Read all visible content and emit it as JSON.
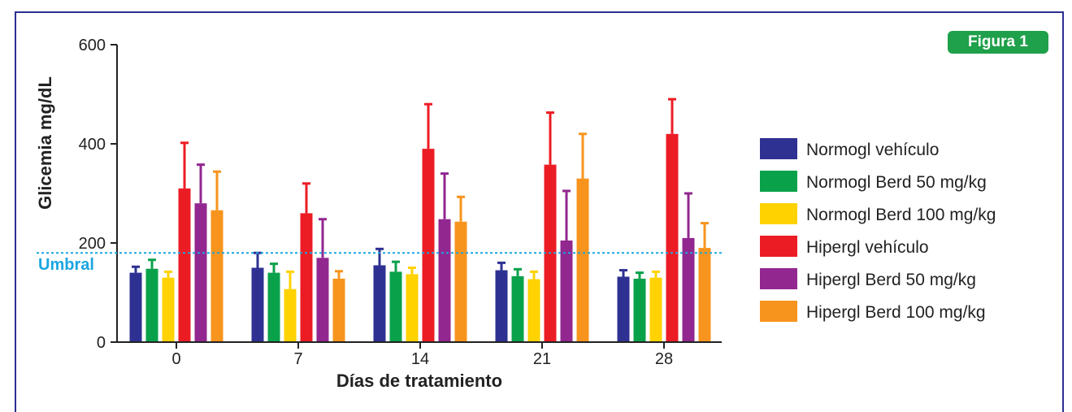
{
  "figure_label": "Figura 1",
  "colors": {
    "frame": "#2b2f8f",
    "badge": "#1fa04a",
    "threshold": "#1aa6e0",
    "series": [
      "#2e3192",
      "#0aa14b",
      "#ffd200",
      "#ec1c24",
      "#92278f",
      "#f7941d"
    ]
  },
  "chart_data": {
    "type": "bar",
    "title": "",
    "xlabel": "Días de tratamiento",
    "ylabel": "Glicemia mg/dL",
    "ylim": [
      0,
      600
    ],
    "yticks": [
      "0",
      "200",
      "400",
      "600"
    ],
    "categories": [
      "0",
      "7",
      "14",
      "21",
      "28"
    ],
    "threshold": {
      "label": "Umbral",
      "value": 180
    },
    "legend_position": "right",
    "grid": false,
    "series": [
      {
        "name": "Normogl vehículo",
        "values": [
          140,
          150,
          155,
          145,
          132
        ],
        "errors": [
          12,
          30,
          33,
          15,
          13
        ]
      },
      {
        "name": "Normogl Berd 50 mg/kg",
        "values": [
          148,
          140,
          142,
          133,
          128
        ],
        "errors": [
          18,
          18,
          20,
          14,
          12
        ]
      },
      {
        "name": "Normogl Berd 100 mg/kg",
        "values": [
          130,
          107,
          137,
          127,
          130
        ],
        "errors": [
          12,
          35,
          13,
          15,
          12
        ]
      },
      {
        "name": "Hipergl vehículo",
        "values": [
          310,
          260,
          390,
          358,
          420
        ],
        "errors": [
          92,
          60,
          90,
          105,
          70
        ]
      },
      {
        "name": "Hipergl Berd 50 mg/kg",
        "values": [
          280,
          170,
          248,
          205,
          210
        ],
        "errors": [
          78,
          78,
          92,
          100,
          90
        ]
      },
      {
        "name": "Hipergl Berd 100 mg/kg",
        "values": [
          266,
          128,
          243,
          330,
          190
        ],
        "errors": [
          78,
          15,
          50,
          90,
          50
        ]
      }
    ]
  }
}
